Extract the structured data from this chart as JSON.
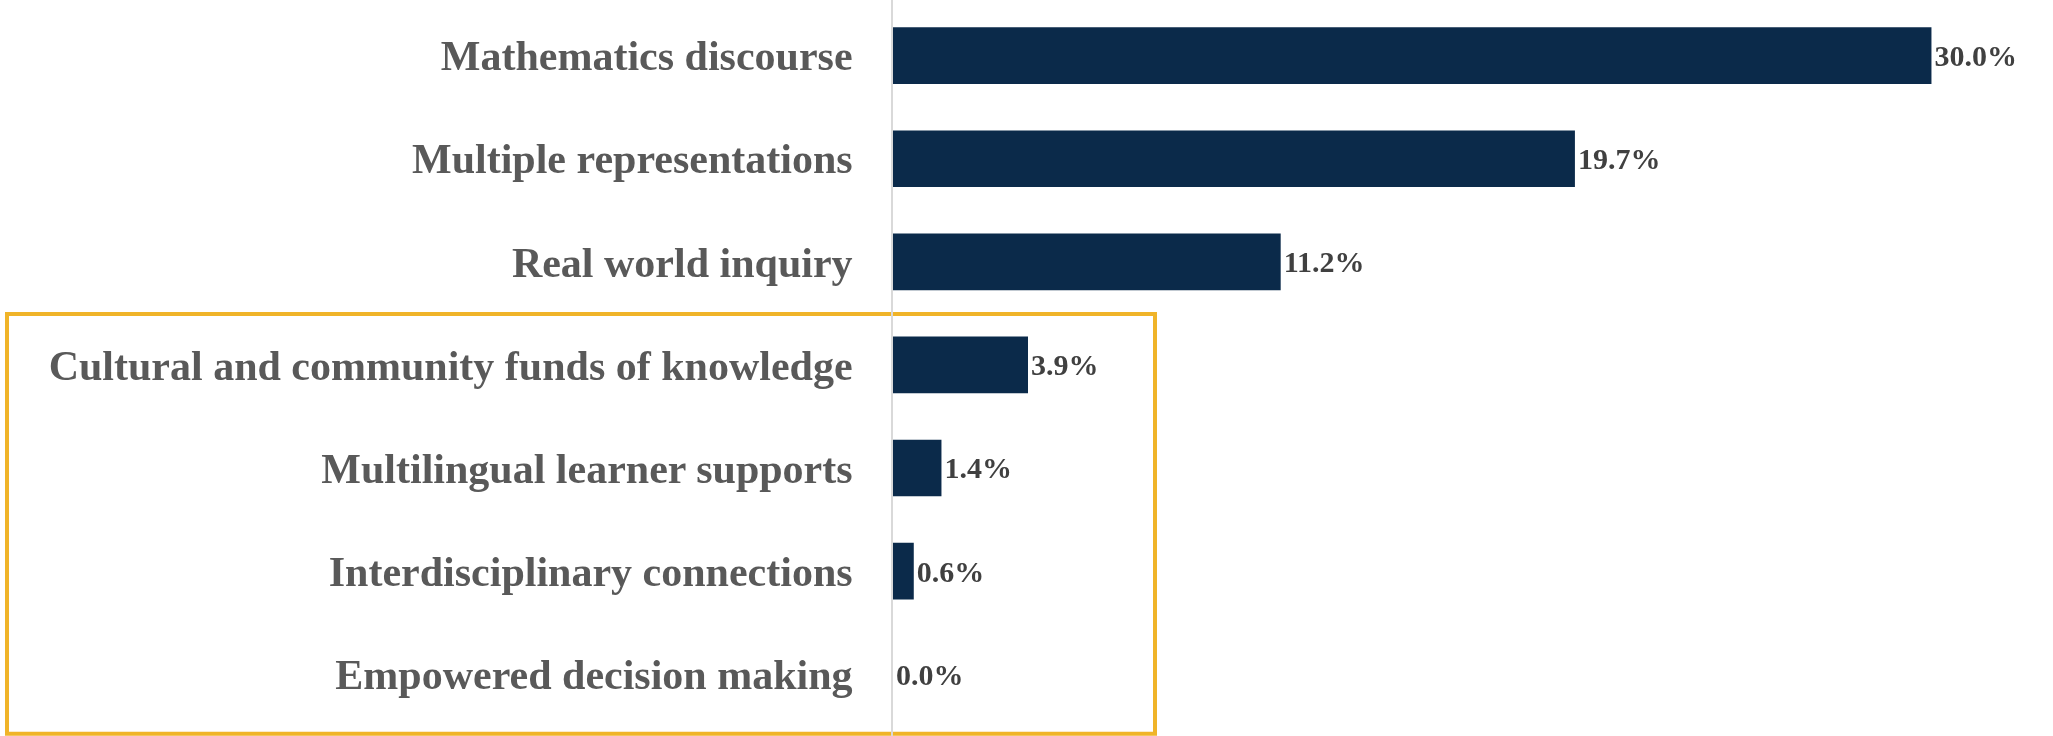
{
  "chart_data": {
    "type": "bar",
    "orientation": "horizontal",
    "categories": [
      "Mathematics discourse",
      "Multiple representations",
      "Real world inquiry",
      "Cultural and community funds of knowledge",
      "Multilingual learner supports",
      "Interdisciplinary connections",
      "Empowered decision making"
    ],
    "values": [
      30.0,
      19.7,
      11.2,
      3.9,
      1.4,
      0.6,
      0.0
    ],
    "value_labels": [
      "30.0%",
      "19.7%",
      "11.2%",
      "3.9%",
      "1.4%",
      "0.6%",
      "0.0%"
    ],
    "color": "#0b2a4a",
    "grid": false,
    "legend": false
  }
}
